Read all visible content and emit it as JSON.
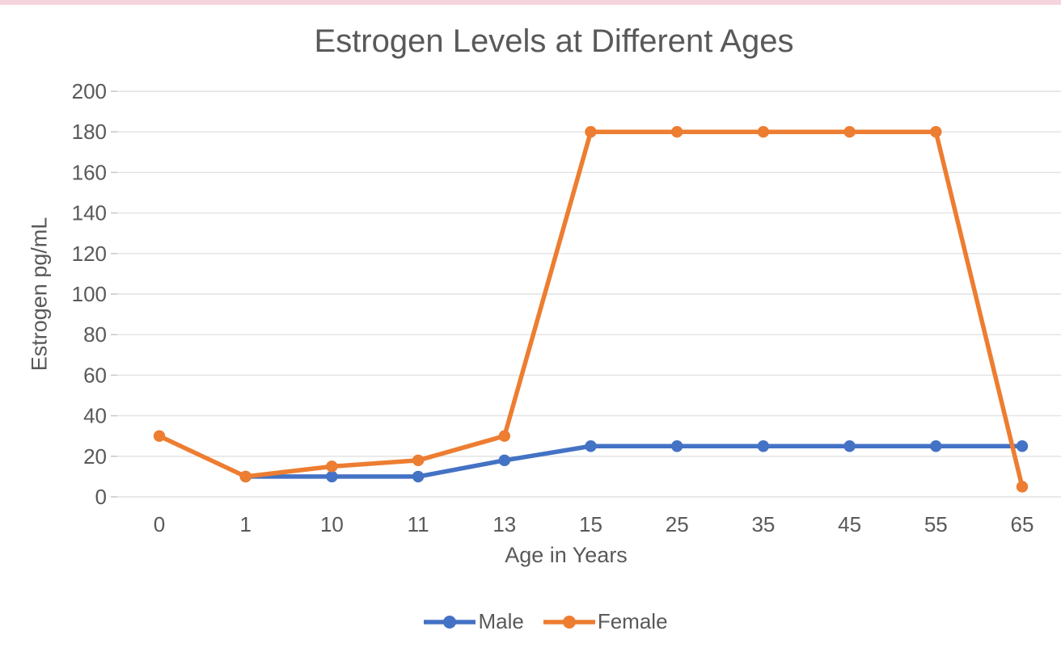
{
  "chart_data": {
    "type": "line",
    "title": "Estrogen Levels at Different Ages",
    "xlabel": "Age in Years",
    "ylabel": "Estrogen pg/mL",
    "categories": [
      "0",
      "1",
      "10",
      "11",
      "13",
      "15",
      "25",
      "35",
      "45",
      "55",
      "65"
    ],
    "series": [
      {
        "name": "Male",
        "color": "#4472C4",
        "values": [
          null,
          10,
          10,
          10,
          18,
          25,
          25,
          25,
          25,
          25,
          25
        ]
      },
      {
        "name": "Female",
        "color": "#ED7D31",
        "values": [
          30,
          10,
          15,
          18,
          30,
          180,
          180,
          180,
          180,
          180,
          5
        ]
      }
    ],
    "ylim": [
      0,
      200
    ],
    "ytick_step": 20,
    "yticks": [
      "0",
      "20",
      "40",
      "60",
      "80",
      "100",
      "120",
      "140",
      "160",
      "180",
      "200"
    ],
    "grid": true,
    "legend_position": "bottom"
  },
  "colors": {
    "text": "#595959",
    "gridline": "#E2E2E2",
    "tick_mark": "#C9C9C9",
    "top_strip": "#F6D3DD",
    "background": "#FFFFFF"
  }
}
